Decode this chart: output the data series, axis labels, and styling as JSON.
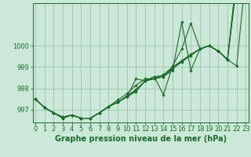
{
  "xlabel": "Graphe pression niveau de la mer (hPa)",
  "ylabel": "",
  "bg_color": "#cce8d8",
  "grid_color": "#9ec4b0",
  "line_color": "#1a6b2a",
  "hours": [
    0,
    1,
    2,
    3,
    4,
    5,
    6,
    7,
    8,
    9,
    10,
    11,
    12,
    13,
    14,
    15,
    16,
    17,
    18,
    19,
    20,
    21,
    22,
    23
  ],
  "series1": [
    997.5,
    997.1,
    996.85,
    996.6,
    996.75,
    996.6,
    996.6,
    996.85,
    997.15,
    997.35,
    997.6,
    997.85,
    998.35,
    998.45,
    998.55,
    998.85,
    1001.1,
    998.85,
    999.85,
    1000.0,
    999.75,
    999.35,
    999.05,
    1003.3
  ],
  "series2": [
    997.5,
    997.1,
    996.85,
    996.6,
    996.75,
    996.6,
    996.6,
    996.85,
    997.15,
    997.45,
    997.75,
    998.15,
    998.45,
    998.45,
    998.65,
    999.0,
    999.3,
    999.6,
    999.85,
    1000.0,
    999.75,
    999.35,
    1003.2,
    1003.3
  ],
  "series3": [
    997.5,
    997.1,
    996.85,
    996.65,
    996.75,
    996.6,
    996.6,
    996.85,
    997.15,
    997.35,
    997.65,
    997.95,
    998.35,
    998.45,
    998.55,
    999.0,
    999.25,
    999.55,
    999.85,
    1000.0,
    999.75,
    999.35,
    1003.2,
    1003.3
  ],
  "series4": [
    997.5,
    997.1,
    996.85,
    996.65,
    996.75,
    996.6,
    996.6,
    996.85,
    997.15,
    997.35,
    997.6,
    997.9,
    998.35,
    998.55,
    997.7,
    999.05,
    999.85,
    1001.05,
    999.85,
    1000.0,
    999.75,
    999.35,
    1003.0,
    1003.3
  ],
  "series5": [
    997.5,
    997.1,
    996.85,
    996.65,
    996.75,
    996.6,
    996.6,
    996.85,
    997.15,
    997.35,
    997.6,
    998.45,
    998.35,
    998.55,
    998.6,
    998.9,
    999.25,
    999.55,
    999.85,
    1000.0,
    999.75,
    999.35,
    1002.85,
    1003.3
  ],
  "xlim": [
    -0.3,
    23.3
  ],
  "ylim": [
    996.4,
    1002.0
  ],
  "yticks": [
    997,
    998,
    999,
    1000
  ],
  "xticks": [
    0,
    1,
    2,
    3,
    4,
    5,
    6,
    7,
    8,
    9,
    10,
    11,
    12,
    13,
    14,
    15,
    16,
    17,
    18,
    19,
    20,
    21,
    22,
    23
  ],
  "fontsize_xlabel": 7,
  "fontsize_ticks": 6
}
